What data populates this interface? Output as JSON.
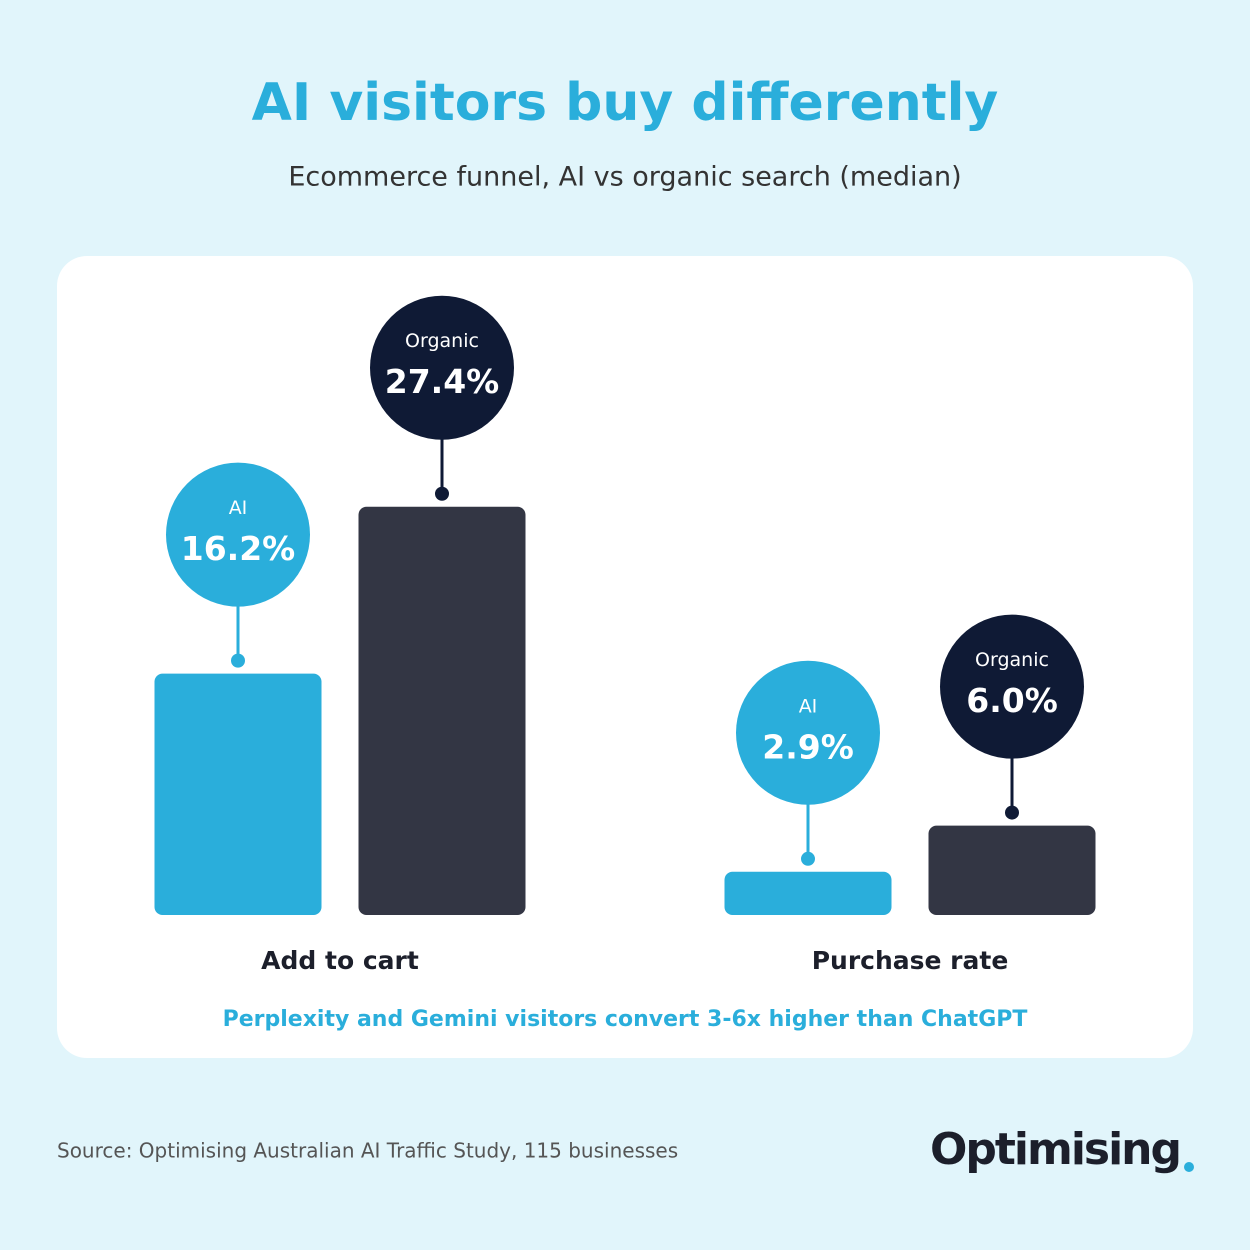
{
  "chart_data": {
    "type": "bar",
    "title": "AI visitors buy differently",
    "subtitle": "Ecommerce funnel, AI vs organic search (median)",
    "categories": [
      "Add to cart",
      "Purchase rate"
    ],
    "series": [
      {
        "name": "AI",
        "color": "#2aaedb",
        "values": [
          16.2,
          2.9
        ],
        "value_labels": [
          "16.2%",
          "2.9%"
        ]
      },
      {
        "name": "Organic",
        "color": "#333644",
        "values": [
          27.4,
          6.0
        ],
        "value_labels": [
          "27.4%",
          "6.0%"
        ]
      }
    ],
    "annotation": "Perplexity and Gemini visitors convert 3-6x higher than ChatGPT",
    "source": "Source: Optimising Australian AI Traffic Study, 115 businesses",
    "brand": "Optimising"
  }
}
